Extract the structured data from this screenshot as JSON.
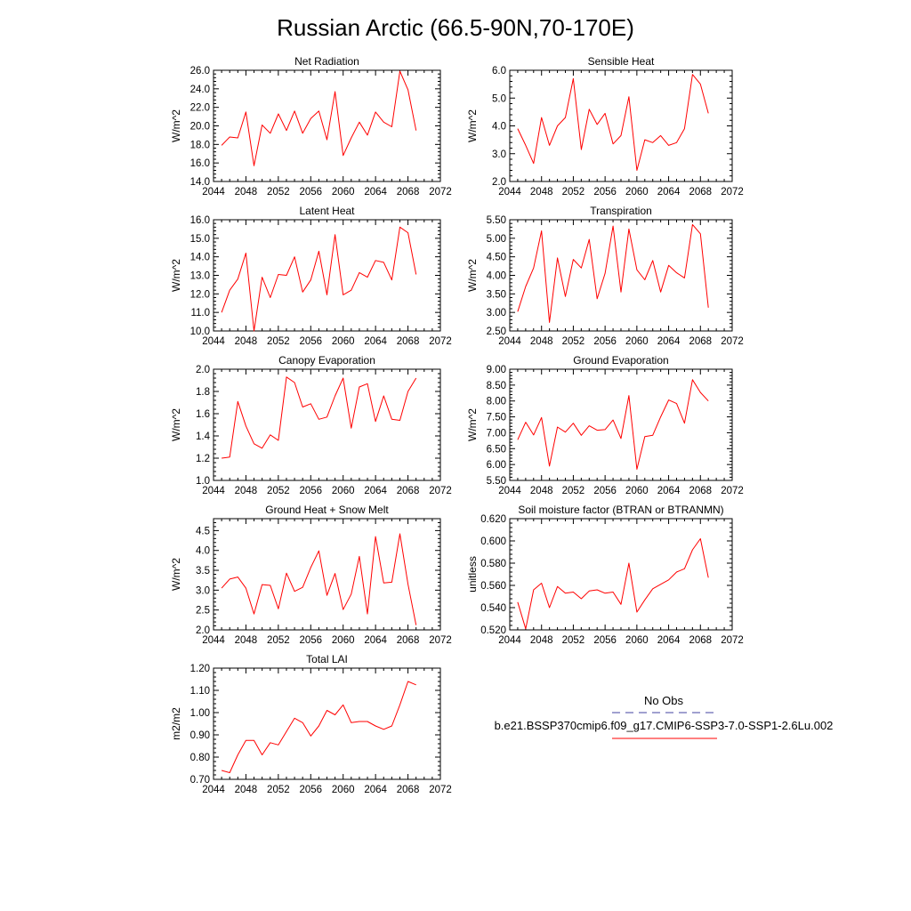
{
  "figure": {
    "title": "Russian Arctic (66.5-90N,70-170E)"
  },
  "legend": {
    "entries": [
      {
        "label": "No Obs",
        "color": "#4040a0",
        "style": "dashed"
      },
      {
        "label": "b.e21.BSSP370cmip6.f09_g17.CMIP6-SSP3-7.0-SSP1-2.6Lu.002",
        "color": "#ff0000",
        "style": "solid"
      }
    ]
  },
  "chart_data": [
    {
      "type": "line",
      "title": "Net Radiation",
      "ylabel": "W/m^2",
      "xlim": [
        2044,
        2072
      ],
      "ylim": [
        14.0,
        26.0
      ],
      "yticks": [
        "14.0",
        "16.0",
        "18.0",
        "20.0",
        "22.0",
        "24.0",
        "26.0"
      ],
      "xticks": [
        "2044",
        "2048",
        "2052",
        "2056",
        "2060",
        "2064",
        "2068",
        "2072"
      ],
      "series": [
        {
          "color": "#ff0000",
          "x": [
            2045,
            2046,
            2047,
            2048,
            2049,
            2050,
            2051,
            2052,
            2053,
            2054,
            2055,
            2056,
            2057,
            2058,
            2059,
            2060,
            2061,
            2062,
            2063,
            2064,
            2065,
            2066,
            2067,
            2068,
            2069
          ],
          "values": [
            17.9,
            18.8,
            18.7,
            21.5,
            15.7,
            20.1,
            19.2,
            21.3,
            19.5,
            21.6,
            19.2,
            20.8,
            21.6,
            18.5,
            23.7,
            16.8,
            18.7,
            20.4,
            19.0,
            21.5,
            20.4,
            19.9,
            25.9,
            23.9,
            19.5
          ]
        }
      ]
    },
    {
      "type": "line",
      "title": "Sensible Heat",
      "ylabel": "W/m^2",
      "xlim": [
        2044,
        2072
      ],
      "ylim": [
        2.0,
        6.0
      ],
      "yticks": [
        "2.0",
        "3.0",
        "4.0",
        "5.0",
        "6.0"
      ],
      "xticks": [
        "2044",
        "2048",
        "2052",
        "2056",
        "2060",
        "2064",
        "2068",
        "2072"
      ],
      "series": [
        {
          "color": "#ff0000",
          "x": [
            2045,
            2046,
            2047,
            2048,
            2049,
            2050,
            2051,
            2052,
            2053,
            2054,
            2055,
            2056,
            2057,
            2058,
            2059,
            2060,
            2061,
            2062,
            2063,
            2064,
            2065,
            2066,
            2067,
            2068,
            2069
          ],
          "values": [
            3.9,
            3.3,
            2.65,
            4.3,
            3.3,
            4.0,
            4.3,
            5.7,
            3.15,
            4.6,
            4.05,
            4.45,
            3.35,
            3.65,
            5.05,
            2.4,
            3.5,
            3.4,
            3.65,
            3.3,
            3.4,
            3.9,
            5.85,
            5.5,
            4.45
          ]
        }
      ]
    },
    {
      "type": "line",
      "title": "Latent Heat",
      "ylabel": "W/m^2",
      "xlim": [
        2044,
        2072
      ],
      "ylim": [
        10.0,
        16.0
      ],
      "yticks": [
        "10.0",
        "11.0",
        "12.0",
        "13.0",
        "14.0",
        "15.0",
        "16.0"
      ],
      "xticks": [
        "2044",
        "2048",
        "2052",
        "2056",
        "2060",
        "2064",
        "2068",
        "2072"
      ],
      "series": [
        {
          "color": "#ff0000",
          "x": [
            2045,
            2046,
            2047,
            2048,
            2049,
            2050,
            2051,
            2052,
            2053,
            2054,
            2055,
            2056,
            2057,
            2058,
            2059,
            2060,
            2061,
            2062,
            2063,
            2064,
            2065,
            2066,
            2067,
            2068,
            2069
          ],
          "values": [
            11.0,
            12.2,
            12.8,
            14.2,
            10.0,
            12.9,
            11.8,
            13.05,
            13.0,
            14.0,
            12.1,
            12.75,
            14.3,
            11.95,
            15.2,
            11.95,
            12.2,
            13.15,
            12.9,
            13.8,
            13.7,
            12.75,
            15.6,
            15.3,
            13.05
          ]
        }
      ]
    },
    {
      "type": "line",
      "title": "Transpiration",
      "ylabel": "W/m^2",
      "xlim": [
        2044,
        2072
      ],
      "ylim": [
        2.5,
        5.5
      ],
      "yticks": [
        "2.50",
        "3.00",
        "3.50",
        "4.00",
        "4.50",
        "5.00",
        "5.50"
      ],
      "xticks": [
        "2044",
        "2048",
        "2052",
        "2056",
        "2060",
        "2064",
        "2068",
        "2072"
      ],
      "series": [
        {
          "color": "#ff0000",
          "x": [
            2045,
            2046,
            2047,
            2048,
            2049,
            2050,
            2051,
            2052,
            2053,
            2054,
            2055,
            2056,
            2057,
            2058,
            2059,
            2060,
            2061,
            2062,
            2063,
            2064,
            2065,
            2066,
            2067,
            2068,
            2069
          ],
          "values": [
            3.02,
            3.7,
            4.2,
            5.2,
            2.73,
            4.47,
            3.43,
            4.43,
            4.2,
            4.97,
            3.37,
            4.05,
            5.33,
            3.55,
            5.25,
            4.15,
            3.88,
            4.4,
            3.55,
            4.27,
            4.07,
            3.93,
            5.37,
            5.12,
            3.13
          ]
        }
      ]
    },
    {
      "type": "line",
      "title": "Canopy Evaporation",
      "ylabel": "W/m^2",
      "xlim": [
        2044,
        2072
      ],
      "ylim": [
        1.0,
        2.0
      ],
      "yticks": [
        "1.0",
        "1.2",
        "1.4",
        "1.6",
        "1.8",
        "2.0"
      ],
      "xticks": [
        "2044",
        "2048",
        "2052",
        "2056",
        "2060",
        "2064",
        "2068",
        "2072"
      ],
      "series": [
        {
          "color": "#ff0000",
          "x": [
            2045,
            2046,
            2047,
            2048,
            2049,
            2050,
            2051,
            2052,
            2053,
            2054,
            2055,
            2056,
            2057,
            2058,
            2059,
            2060,
            2061,
            2062,
            2063,
            2064,
            2065,
            2066,
            2067,
            2068,
            2069
          ],
          "values": [
            1.2,
            1.21,
            1.71,
            1.49,
            1.33,
            1.29,
            1.41,
            1.36,
            1.93,
            1.88,
            1.66,
            1.69,
            1.55,
            1.57,
            1.76,
            1.92,
            1.47,
            1.84,
            1.87,
            1.53,
            1.76,
            1.55,
            1.54,
            1.8,
            1.92
          ]
        }
      ]
    },
    {
      "type": "line",
      "title": "Ground Evaporation",
      "ylabel": "W/m^2",
      "xlim": [
        2044,
        2072
      ],
      "ylim": [
        5.5,
        9.0
      ],
      "yticks": [
        "5.50",
        "6.00",
        "6.50",
        "7.00",
        "7.50",
        "8.00",
        "8.50",
        "9.00"
      ],
      "xticks": [
        "2044",
        "2048",
        "2052",
        "2056",
        "2060",
        "2064",
        "2068",
        "2072"
      ],
      "series": [
        {
          "color": "#ff0000",
          "x": [
            2045,
            2046,
            2047,
            2048,
            2049,
            2050,
            2051,
            2052,
            2053,
            2054,
            2055,
            2056,
            2057,
            2058,
            2059,
            2060,
            2061,
            2062,
            2063,
            2064,
            2065,
            2066,
            2067,
            2068,
            2069
          ],
          "values": [
            6.78,
            7.33,
            6.93,
            7.48,
            5.95,
            7.18,
            7.02,
            7.3,
            6.92,
            7.22,
            7.08,
            7.1,
            7.4,
            6.82,
            8.17,
            5.85,
            6.88,
            6.92,
            7.5,
            8.03,
            7.92,
            7.3,
            8.67,
            8.27,
            8.0
          ]
        }
      ]
    },
    {
      "type": "line",
      "title": "Ground Heat + Snow Melt",
      "ylabel": "W/m^2",
      "xlim": [
        2044,
        2072
      ],
      "ylim": [
        2.0,
        4.8
      ],
      "yticks": [
        "2.0",
        "2.5",
        "3.0",
        "3.5",
        "4.0",
        "4.5"
      ],
      "xticks": [
        "2044",
        "2048",
        "2052",
        "2056",
        "2060",
        "2064",
        "2068",
        "2072"
      ],
      "series": [
        {
          "color": "#ff0000",
          "x": [
            2045,
            2046,
            2047,
            2048,
            2049,
            2050,
            2051,
            2052,
            2053,
            2054,
            2055,
            2056,
            2057,
            2058,
            2059,
            2060,
            2061,
            2062,
            2063,
            2064,
            2065,
            2066,
            2067,
            2068,
            2069
          ],
          "values": [
            3.05,
            3.28,
            3.33,
            3.05,
            2.4,
            3.14,
            3.12,
            2.53,
            3.43,
            2.97,
            3.07,
            3.57,
            3.99,
            2.87,
            3.42,
            2.51,
            2.9,
            3.85,
            2.4,
            4.35,
            3.18,
            3.2,
            4.42,
            3.15,
            2.12
          ]
        }
      ]
    },
    {
      "type": "line",
      "title": "Soil moisture factor (BTRAN or BTRANMN)",
      "ylabel": "unitless",
      "xlim": [
        2044,
        2072
      ],
      "ylim": [
        0.52,
        0.62
      ],
      "yticks": [
        "0.520",
        "0.540",
        "0.560",
        "0.580",
        "0.600",
        "0.620"
      ],
      "xticks": [
        "2044",
        "2048",
        "2052",
        "2056",
        "2060",
        "2064",
        "2068",
        "2072"
      ],
      "series": [
        {
          "color": "#ff0000",
          "x": [
            2045,
            2046,
            2047,
            2048,
            2049,
            2050,
            2051,
            2052,
            2053,
            2054,
            2055,
            2056,
            2057,
            2058,
            2059,
            2060,
            2061,
            2062,
            2063,
            2064,
            2065,
            2066,
            2067,
            2068,
            2069
          ],
          "values": [
            0.545,
            0.521,
            0.556,
            0.562,
            0.54,
            0.559,
            0.553,
            0.554,
            0.548,
            0.555,
            0.556,
            0.553,
            0.554,
            0.543,
            0.58,
            0.536,
            0.547,
            0.557,
            0.561,
            0.565,
            0.572,
            0.575,
            0.592,
            0.602,
            0.567
          ]
        }
      ]
    },
    {
      "type": "line",
      "title": "Total LAI",
      "ylabel": "m2/m2",
      "xlim": [
        2044,
        2072
      ],
      "ylim": [
        0.7,
        1.2
      ],
      "yticks": [
        "0.70",
        "0.80",
        "0.90",
        "1.00",
        "1.10",
        "1.20"
      ],
      "xticks": [
        "2044",
        "2048",
        "2052",
        "2056",
        "2060",
        "2064",
        "2068",
        "2072"
      ],
      "series": [
        {
          "color": "#ff0000",
          "x": [
            2045,
            2046,
            2047,
            2048,
            2049,
            2050,
            2051,
            2052,
            2053,
            2054,
            2055,
            2056,
            2057,
            2058,
            2059,
            2060,
            2061,
            2062,
            2063,
            2064,
            2065,
            2066,
            2067,
            2068,
            2069
          ],
          "values": [
            0.74,
            0.73,
            0.81,
            0.875,
            0.875,
            0.81,
            0.865,
            0.855,
            0.915,
            0.975,
            0.955,
            0.895,
            0.94,
            1.01,
            0.99,
            1.035,
            0.955,
            0.96,
            0.96,
            0.94,
            0.925,
            0.94,
            1.035,
            1.14,
            1.125
          ]
        }
      ]
    }
  ]
}
